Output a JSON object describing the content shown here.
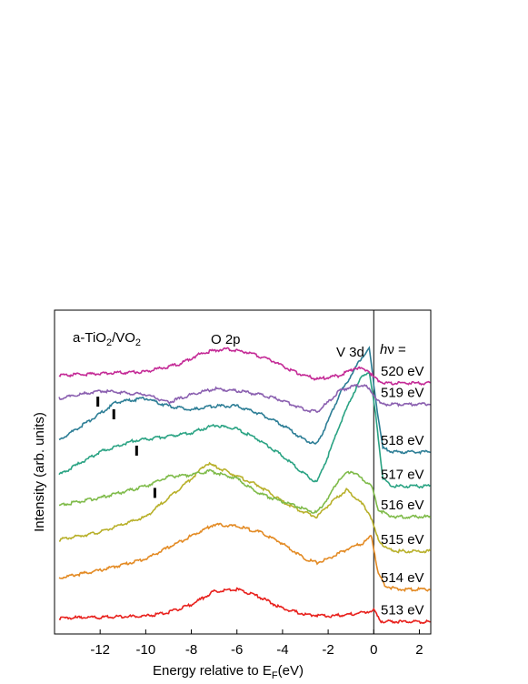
{
  "chart_data": {
    "type": "line",
    "title": "",
    "xlabel_main": "Energy relative to E",
    "xlabel_sub": "F",
    "xlabel_tail": "(eV)",
    "ylabel": "Intensity (arb. units)",
    "xlim": [
      -14,
      2.5
    ],
    "x_ticks": [
      -12,
      -10,
      -8,
      -6,
      -4,
      -2,
      0,
      2
    ],
    "x_tick_labels": [
      "-12",
      "-10",
      "-8",
      "-6",
      "-4",
      "-2",
      "0",
      "2"
    ],
    "annotations": {
      "sample": {
        "base": "a-TiO",
        "sub1": "2",
        "mid": "/VO",
        "sub2": "2"
      },
      "o2p": "O 2p",
      "v3d": "V 3d",
      "hv_prefix": "h",
      "hv_symbol": "ν",
      "hv_suffix": " ="
    },
    "fermi_level_x": 0,
    "series": [
      {
        "name": "513 eV",
        "color": "#e8211d",
        "offset": 0.15,
        "points": [
          [
            -13.8,
            0.1
          ],
          [
            -12,
            0.12
          ],
          [
            -10,
            0.15
          ],
          [
            -9,
            0.25
          ],
          [
            -8,
            0.45
          ],
          [
            -7,
            0.8
          ],
          [
            -6,
            0.85
          ],
          [
            -5,
            0.65
          ],
          [
            -4,
            0.35
          ],
          [
            -3,
            0.2
          ],
          [
            -2,
            0.15
          ],
          [
            -1,
            0.2
          ],
          [
            -0.5,
            0.25
          ],
          [
            0,
            0.3
          ],
          [
            0.3,
            0.02
          ],
          [
            0.8,
            0
          ],
          [
            2.5,
            0
          ]
        ]
      },
      {
        "name": "514 eV",
        "color": "#e38a23",
        "offset": 1.0,
        "points": [
          [
            -13.8,
            0.3
          ],
          [
            -12,
            0.5
          ],
          [
            -10,
            0.8
          ],
          [
            -9,
            1.1
          ],
          [
            -8,
            1.4
          ],
          [
            -7,
            1.7
          ],
          [
            -6,
            1.65
          ],
          [
            -5,
            1.5
          ],
          [
            -4,
            1.2
          ],
          [
            -3,
            0.8
          ],
          [
            -2.5,
            0.7
          ],
          [
            -2,
            0.8
          ],
          [
            -1,
            1.1
          ],
          [
            -0.5,
            1.2
          ],
          [
            -0.1,
            1.4
          ],
          [
            0.2,
            0.4
          ],
          [
            0.5,
            0.1
          ],
          [
            1,
            0
          ],
          [
            2.5,
            0
          ]
        ]
      },
      {
        "name": "515 eV",
        "color": "#b8b02a",
        "offset": 2.0,
        "points": [
          [
            -13.8,
            0.3
          ],
          [
            -12,
            0.5
          ],
          [
            -10,
            0.9
          ],
          [
            -9,
            1.4
          ],
          [
            -8,
            1.9
          ],
          [
            -7.3,
            2.3
          ],
          [
            -6.5,
            2.1
          ],
          [
            -5,
            1.7
          ],
          [
            -4,
            1.3
          ],
          [
            -3,
            1.0
          ],
          [
            -2.5,
            0.9
          ],
          [
            -2,
            1.2
          ],
          [
            -1.2,
            1.6
          ],
          [
            -0.6,
            1.3
          ],
          [
            -0.2,
            1.0
          ],
          [
            0.2,
            0.3
          ],
          [
            0.6,
            0.05
          ],
          [
            1,
            0
          ],
          [
            2.5,
            0
          ]
        ]
      },
      {
        "name": "516 eV",
        "color": "#7fbb4a",
        "offset": 2.9,
        "points": [
          [
            -13.8,
            0.3
          ],
          [
            -12,
            0.5
          ],
          [
            -10,
            0.8
          ],
          [
            -9,
            1.05
          ],
          [
            -8,
            1.1
          ],
          [
            -7.2,
            1.2
          ],
          [
            -6,
            1.0
          ],
          [
            -5,
            0.6
          ],
          [
            -4,
            0.4
          ],
          [
            -3,
            0.2
          ],
          [
            -2.5,
            0.1
          ],
          [
            -2,
            0.5
          ],
          [
            -1.5,
            1.0
          ],
          [
            -1,
            1.2
          ],
          [
            -0.5,
            1.0
          ],
          [
            -0.1,
            0.8
          ],
          [
            0.2,
            0.2
          ],
          [
            0.6,
            0.05
          ],
          [
            1,
            0
          ],
          [
            2.5,
            0
          ]
        ]
      },
      {
        "name": "517 eV",
        "color": "#2aa383",
        "offset": 3.7,
        "points": [
          [
            -13.8,
            0.3
          ],
          [
            -12,
            0.9
          ],
          [
            -10.5,
            1.2
          ],
          [
            -9,
            1.3
          ],
          [
            -8,
            1.4
          ],
          [
            -7,
            1.6
          ],
          [
            -6,
            1.5
          ],
          [
            -5,
            1.2
          ],
          [
            -4,
            0.8
          ],
          [
            -3,
            0.3
          ],
          [
            -2.5,
            0.1
          ],
          [
            -2,
            0.8
          ],
          [
            -1.5,
            1.6
          ],
          [
            -1,
            2.3
          ],
          [
            -0.5,
            2.9
          ],
          [
            -0.2,
            3.0
          ],
          [
            0.1,
            1.8
          ],
          [
            0.4,
            0.2
          ],
          [
            0.8,
            0
          ],
          [
            2.5,
            0
          ]
        ]
      },
      {
        "name": "518 eV",
        "color": "#2d7e96",
        "offset": 4.6,
        "points": [
          [
            -13.8,
            0.3
          ],
          [
            -12,
            1.0
          ],
          [
            -11.3,
            1.3
          ],
          [
            -10,
            1.4
          ],
          [
            -9,
            1.2
          ],
          [
            -8,
            1.1
          ],
          [
            -7,
            1.2
          ],
          [
            -6,
            1.2
          ],
          [
            -5,
            1.0
          ],
          [
            -4,
            0.7
          ],
          [
            -3,
            0.3
          ],
          [
            -2.5,
            0.2
          ],
          [
            -2,
            0.8
          ],
          [
            -1.5,
            1.5
          ],
          [
            -1,
            2.0
          ],
          [
            -0.5,
            2.5
          ],
          [
            -0.2,
            2.7
          ],
          [
            0.1,
            1.3
          ],
          [
            0.4,
            0.1
          ],
          [
            0.8,
            0
          ],
          [
            2.5,
            0
          ]
        ]
      },
      {
        "name": "519 eV",
        "color": "#8b60b0",
        "offset": 5.9,
        "points": [
          [
            -13.8,
            0.1
          ],
          [
            -12,
            0.3
          ],
          [
            -10,
            0.2
          ],
          [
            -9,
            0.0
          ],
          [
            -8,
            0.2
          ],
          [
            -7,
            0.35
          ],
          [
            -6,
            0.3
          ],
          [
            -5,
            0.2
          ],
          [
            -4,
            0.05
          ],
          [
            -3,
            -0.2
          ],
          [
            -2.5,
            -0.25
          ],
          [
            -2,
            0.0
          ],
          [
            -1.5,
            0.3
          ],
          [
            -1,
            0.4
          ],
          [
            -0.4,
            0.45
          ],
          [
            0,
            0.2
          ],
          [
            0.3,
            -0.05
          ],
          [
            1,
            -0.05
          ],
          [
            2.5,
            -0.05
          ]
        ]
      },
      {
        "name": "520 eV",
        "color": "#c42a96",
        "offset": 6.5,
        "points": [
          [
            -13.8,
            0.1
          ],
          [
            -12,
            0.15
          ],
          [
            -10,
            0.2
          ],
          [
            -8.5,
            0.4
          ],
          [
            -7.5,
            0.7
          ],
          [
            -6.5,
            0.8
          ],
          [
            -5.5,
            0.7
          ],
          [
            -4.5,
            0.5
          ],
          [
            -3.5,
            0.2
          ],
          [
            -2.5,
            0.0
          ],
          [
            -1.5,
            0.1
          ],
          [
            -0.8,
            0.3
          ],
          [
            -0.3,
            0.25
          ],
          [
            0.1,
            0.0
          ],
          [
            0.5,
            -0.1
          ],
          [
            2.5,
            -0.1
          ]
        ]
      }
    ],
    "markers": [
      {
        "series": "516 eV",
        "x": -9.6
      },
      {
        "series": "517 eV",
        "x": -10.4
      },
      {
        "series": "518 eV",
        "x": -11.4
      },
      {
        "series": "519 eV",
        "x": -12.1
      }
    ]
  }
}
